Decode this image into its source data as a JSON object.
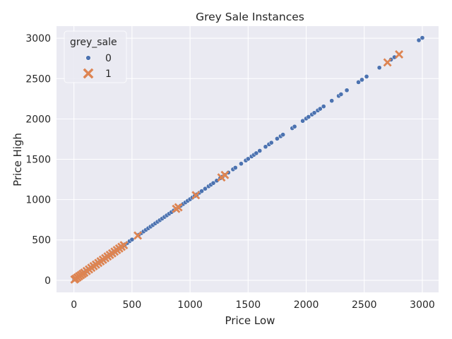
{
  "chart_data": {
    "type": "scatter",
    "title": "Grey Sale Instances",
    "xlabel": "Price Low",
    "ylabel": "Price High",
    "xlim": [
      -150,
      3140
    ],
    "ylim": [
      -150,
      3150
    ],
    "xticks": [
      0,
      500,
      1000,
      1500,
      2000,
      2500,
      3000
    ],
    "yticks": [
      0,
      500,
      1000,
      1500,
      2000,
      2500,
      3000
    ],
    "grid": true,
    "legend": {
      "title": "grey_sale",
      "placement": "top-left",
      "entries": [
        {
          "label": "0",
          "marker": "circle",
          "color": "#4c72b0"
        },
        {
          "label": "1",
          "marker": "x",
          "color": "#dd8452"
        }
      ]
    },
    "series": [
      {
        "name": "0",
        "color": "#4c72b0",
        "marker": "circle",
        "points": [
          [
            0,
            5
          ],
          [
            5,
            10
          ],
          [
            10,
            15
          ],
          [
            15,
            22
          ],
          [
            20,
            25
          ],
          [
            25,
            30
          ],
          [
            30,
            38
          ],
          [
            35,
            40
          ],
          [
            40,
            45
          ],
          [
            45,
            52
          ],
          [
            50,
            55
          ],
          [
            55,
            60
          ],
          [
            60,
            65
          ],
          [
            70,
            75
          ],
          [
            80,
            85
          ],
          [
            90,
            92
          ],
          [
            100,
            105
          ],
          [
            110,
            112
          ],
          [
            120,
            125
          ],
          [
            130,
            135
          ],
          [
            140,
            145
          ],
          [
            150,
            155
          ],
          [
            160,
            165
          ],
          [
            175,
            180
          ],
          [
            190,
            195
          ],
          [
            200,
            205
          ],
          [
            210,
            215
          ],
          [
            220,
            225
          ],
          [
            235,
            240
          ],
          [
            250,
            255
          ],
          [
            265,
            270
          ],
          [
            280,
            285
          ],
          [
            300,
            305
          ],
          [
            320,
            325
          ],
          [
            340,
            345
          ],
          [
            360,
            365
          ],
          [
            380,
            385
          ],
          [
            400,
            405
          ],
          [
            420,
            425
          ],
          [
            440,
            445
          ],
          [
            460,
            462
          ],
          [
            480,
            485
          ],
          [
            500,
            505
          ],
          [
            560,
            565
          ],
          [
            580,
            585
          ],
          [
            600,
            605
          ],
          [
            620,
            625
          ],
          [
            640,
            645
          ],
          [
            660,
            665
          ],
          [
            680,
            685
          ],
          [
            700,
            705
          ],
          [
            720,
            725
          ],
          [
            740,
            745
          ],
          [
            760,
            765
          ],
          [
            780,
            785
          ],
          [
            800,
            805
          ],
          [
            820,
            825
          ],
          [
            840,
            845
          ],
          [
            860,
            865
          ],
          [
            880,
            885
          ],
          [
            900,
            905
          ],
          [
            920,
            925
          ],
          [
            940,
            945
          ],
          [
            960,
            965
          ],
          [
            980,
            985
          ],
          [
            1000,
            1005
          ],
          [
            1020,
            1025
          ],
          [
            1040,
            1045
          ],
          [
            1060,
            1065
          ],
          [
            1080,
            1085
          ],
          [
            1100,
            1105
          ],
          [
            1130,
            1135
          ],
          [
            1160,
            1165
          ],
          [
            1180,
            1185
          ],
          [
            1200,
            1205
          ],
          [
            1230,
            1235
          ],
          [
            1260,
            1265
          ],
          [
            1280,
            1285
          ],
          [
            1300,
            1305
          ],
          [
            1330,
            1335
          ],
          [
            1370,
            1375
          ],
          [
            1390,
            1395
          ],
          [
            1440,
            1445
          ],
          [
            1480,
            1485
          ],
          [
            1500,
            1505
          ],
          [
            1530,
            1535
          ],
          [
            1550,
            1555
          ],
          [
            1570,
            1575
          ],
          [
            1600,
            1605
          ],
          [
            1650,
            1655
          ],
          [
            1680,
            1685
          ],
          [
            1700,
            1705
          ],
          [
            1750,
            1755
          ],
          [
            1780,
            1785
          ],
          [
            1800,
            1805
          ],
          [
            1880,
            1885
          ],
          [
            1900,
            1905
          ],
          [
            1970,
            1975
          ],
          [
            2000,
            2005
          ],
          [
            2020,
            2025
          ],
          [
            2050,
            2055
          ],
          [
            2070,
            2075
          ],
          [
            2100,
            2105
          ],
          [
            2120,
            2125
          ],
          [
            2150,
            2155
          ],
          [
            2220,
            2225
          ],
          [
            2280,
            2285
          ],
          [
            2300,
            2305
          ],
          [
            2350,
            2355
          ],
          [
            2450,
            2455
          ],
          [
            2480,
            2485
          ],
          [
            2520,
            2525
          ],
          [
            2630,
            2635
          ],
          [
            2730,
            2735
          ],
          [
            2760,
            2765
          ],
          [
            2970,
            2975
          ],
          [
            3000,
            3005
          ]
        ]
      },
      {
        "name": "1",
        "color": "#dd8452",
        "marker": "x",
        "points": [
          [
            5,
            10
          ],
          [
            15,
            20
          ],
          [
            30,
            35
          ],
          [
            45,
            50
          ],
          [
            60,
            65
          ],
          [
            75,
            80
          ],
          [
            90,
            95
          ],
          [
            110,
            115
          ],
          [
            130,
            135
          ],
          [
            150,
            155
          ],
          [
            170,
            175
          ],
          [
            190,
            195
          ],
          [
            210,
            215
          ],
          [
            230,
            235
          ],
          [
            250,
            255
          ],
          [
            270,
            275
          ],
          [
            290,
            295
          ],
          [
            310,
            315
          ],
          [
            330,
            335
          ],
          [
            350,
            355
          ],
          [
            370,
            375
          ],
          [
            390,
            395
          ],
          [
            410,
            415
          ],
          [
            430,
            435
          ],
          [
            550,
            555
          ],
          [
            880,
            885
          ],
          [
            900,
            905
          ],
          [
            1050,
            1055
          ],
          [
            1270,
            1275
          ],
          [
            1300,
            1305
          ],
          [
            2700,
            2700
          ],
          [
            2800,
            2800
          ]
        ]
      }
    ]
  }
}
